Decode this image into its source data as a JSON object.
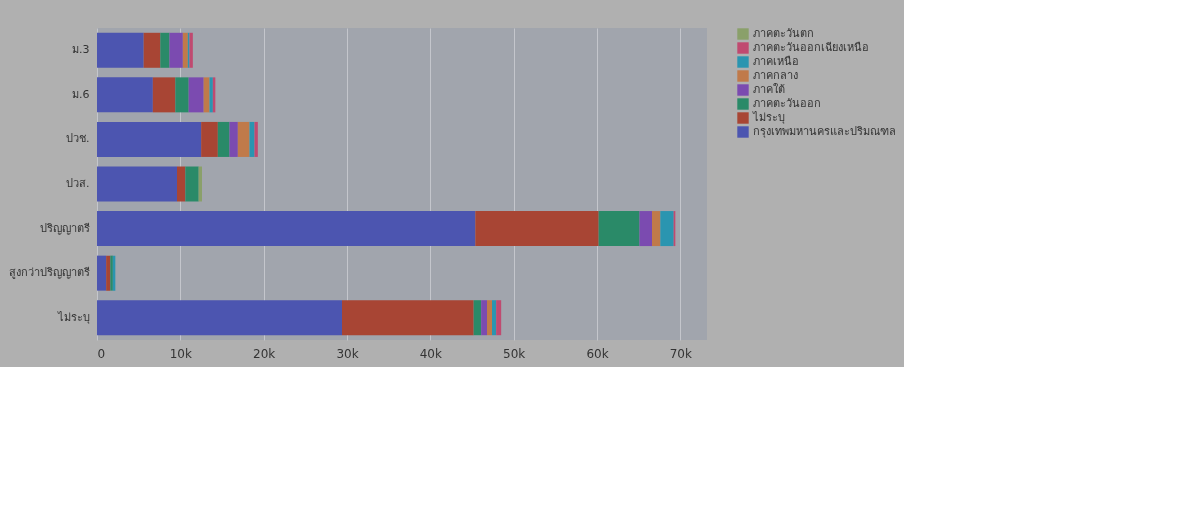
{
  "chart_data": {
    "type": "bar",
    "orientation": "horizontal",
    "stacked": true,
    "categories": [
      "ม.3",
      "ม.6",
      "ปวช.",
      "ปวส.",
      "ปริญญาตรี",
      "สูงกว่าปริญญาตรี",
      "ไม่ระบุ"
    ],
    "series": [
      {
        "name": "กรุงเทพมหานครและปริมณฑล",
        "color": "#4c55b0",
        "values": [
          5600,
          6700,
          12500,
          9600,
          45400,
          1100,
          29400
        ]
      },
      {
        "name": "ไม่ระบุ",
        "color": "#a84534",
        "values": [
          2000,
          2700,
          2000,
          1000,
          14800,
          500,
          15800
        ]
      },
      {
        "name": "ภาคตะวันออก",
        "color": "#2a8a68",
        "values": [
          1100,
          1600,
          1400,
          1600,
          4900,
          300,
          900
        ]
      },
      {
        "name": "ภาคใต้",
        "color": "#7b4bb0",
        "values": [
          1600,
          1800,
          1000,
          null,
          1500,
          null,
          700
        ]
      },
      {
        "name": "ภาคกลาง",
        "color": "#c07a4a",
        "values": [
          600,
          700,
          1400,
          null,
          1000,
          null,
          600
        ]
      },
      {
        "name": "ภาคเหนือ",
        "color": "#2a95b0",
        "values": [
          200,
          400,
          600,
          null,
          1600,
          300,
          500
        ]
      },
      {
        "name": "ภาคตะวันออกเฉียงเหนือ",
        "color": "#c04a70",
        "values": [
          400,
          300,
          400,
          null,
          200,
          null,
          600
        ]
      },
      {
        "name": "ภาคตะวันตก",
        "color": "#8aa06a",
        "values": [
          null,
          null,
          null,
          400,
          null,
          null,
          null
        ]
      }
    ],
    "xlim": [
      0,
      73200
    ],
    "xticks": [
      0,
      {
        "value": 10000,
        "label": "10k"
      },
      {
        "value": 20000,
        "label": "20k"
      },
      {
        "value": 30000,
        "label": "30k"
      },
      {
        "value": 40000,
        "label": "40k"
      },
      {
        "value": 50000,
        "label": "50k"
      },
      {
        "value": 60000,
        "label": "60k"
      },
      {
        "value": 70000,
        "label": "70k"
      }
    ],
    "grid": "x",
    "legend": "top right"
  }
}
